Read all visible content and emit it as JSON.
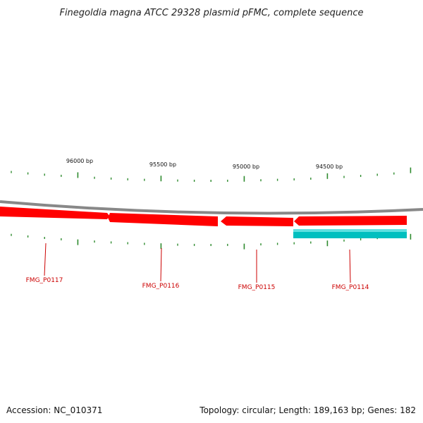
{
  "header": {
    "title": "Finegoldia magna ATCC 29328 plasmid pFMC, complete sequence"
  },
  "scale_labels": [
    "96000 bp",
    "95500 bp",
    "95000 bp",
    "94500 bp"
  ],
  "genes": [
    {
      "label": "FMG_P0117",
      "strand": "forward",
      "color": "#ff0000"
    },
    {
      "label": "FMG_P0116",
      "strand": "forward",
      "color": "#ff0000"
    },
    {
      "label": "FMG_P0115",
      "strand": "reverse",
      "color": "#ff0000"
    },
    {
      "label": "FMG_P0114",
      "strand": "reverse",
      "color": "#ff0000"
    }
  ],
  "features": [
    {
      "track": "inner",
      "color": "#00bfbf"
    }
  ],
  "colors": {
    "backbone": "#888888",
    "ticks": "#2e8b2e",
    "gene": "#ff0000",
    "feature": "#00bfbf",
    "label": "#cc0000"
  },
  "footer": {
    "accession": "Accession: NC_010371",
    "summary": "Topology: circular; Length: 189,163 bp; Genes: 182"
  }
}
